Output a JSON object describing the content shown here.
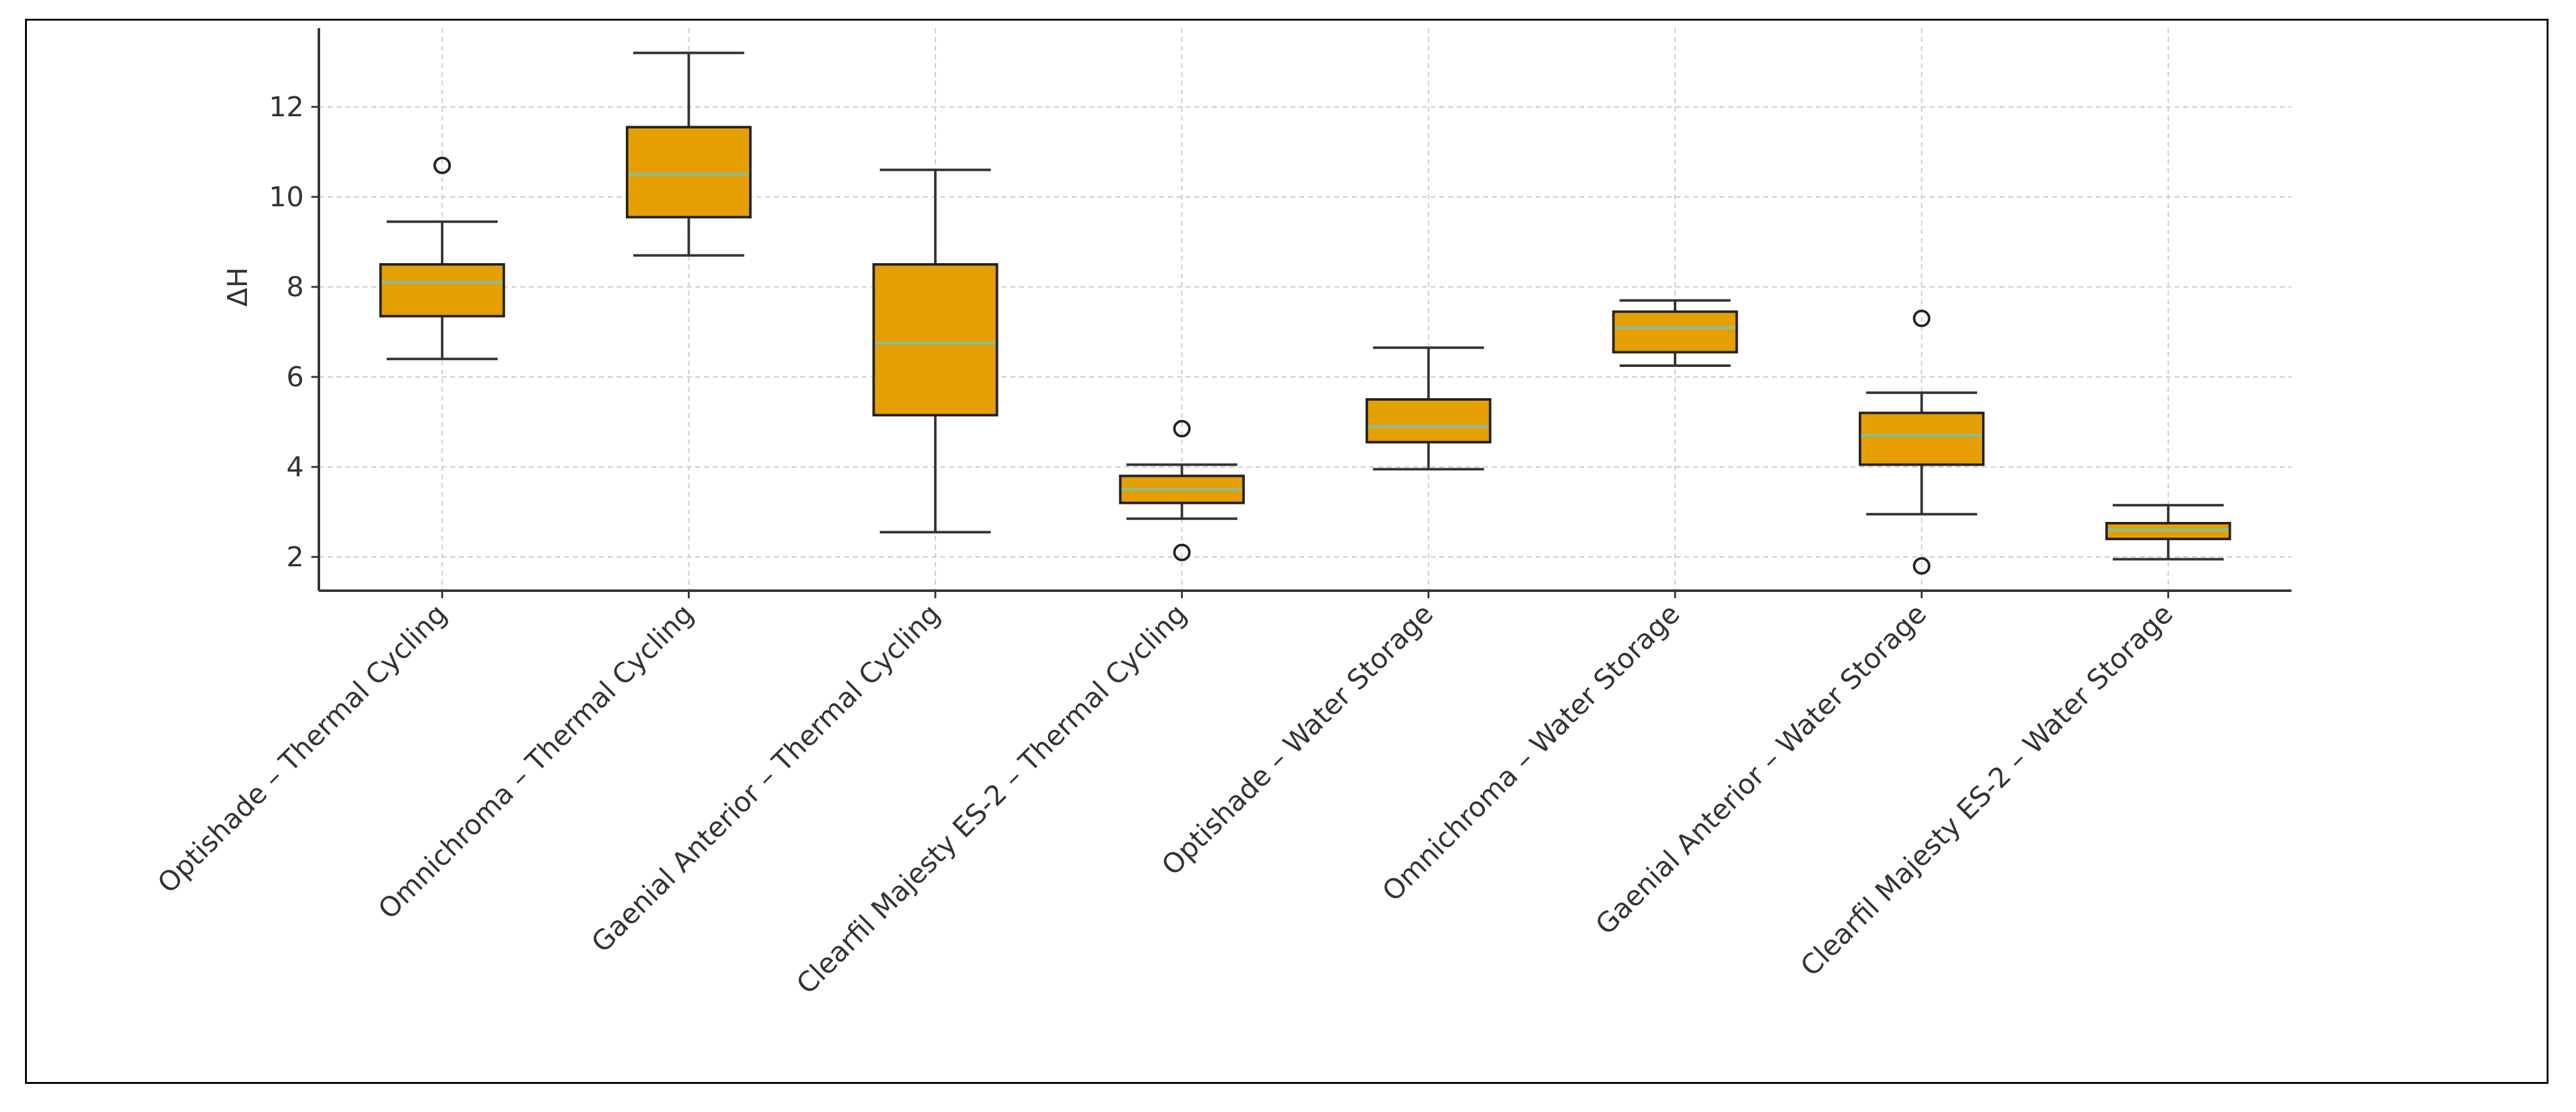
{
  "chart_data": {
    "type": "box",
    "title": "",
    "xlabel": "",
    "ylabel": "ΔH",
    "ylim": [
      1.25,
      13.75
    ],
    "yticks": [
      2,
      4,
      6,
      8,
      10,
      12
    ],
    "grid": true,
    "colors": {
      "box_fill": "#E69F00",
      "median": "#8FBC8F",
      "whisker": "#333333",
      "grid": "#cccccc"
    },
    "categories": [
      "Optishade – Thermal Cycling",
      "Omnichroma – Thermal Cycling",
      "Gaenial Anterior – Thermal Cycling",
      "Clearfil Majesty ES-2 – Thermal Cycling",
      "Optishade – Water Storage",
      "Omnichroma – Water Storage",
      "Gaenial Anterior – Water Storage",
      "Clearfil Majesty ES-2 – Water Storage"
    ],
    "boxes": [
      {
        "whislo": 6.4,
        "q1": 7.35,
        "med": 8.1,
        "q3": 8.5,
        "whishi": 9.45,
        "fliers": [
          10.7
        ]
      },
      {
        "whislo": 8.7,
        "q1": 9.55,
        "med": 10.5,
        "q3": 11.55,
        "whishi": 13.2,
        "fliers": []
      },
      {
        "whislo": 2.55,
        "q1": 5.15,
        "med": 6.75,
        "q3": 8.5,
        "whishi": 10.6,
        "fliers": []
      },
      {
        "whislo": 2.85,
        "q1": 3.2,
        "med": 3.5,
        "q3": 3.8,
        "whishi": 4.05,
        "fliers": [
          4.85,
          2.1
        ]
      },
      {
        "whislo": 3.95,
        "q1": 4.55,
        "med": 4.9,
        "q3": 5.5,
        "whishi": 6.65,
        "fliers": []
      },
      {
        "whislo": 6.25,
        "q1": 6.55,
        "med": 7.1,
        "q3": 7.45,
        "whishi": 7.7,
        "fliers": []
      },
      {
        "whislo": 2.95,
        "q1": 4.05,
        "med": 4.7,
        "q3": 5.2,
        "whishi": 5.65,
        "fliers": [
          7.3,
          1.8
        ]
      },
      {
        "whislo": 1.95,
        "q1": 2.4,
        "med": 2.6,
        "q3": 2.75,
        "whishi": 3.15,
        "fliers": []
      }
    ]
  }
}
